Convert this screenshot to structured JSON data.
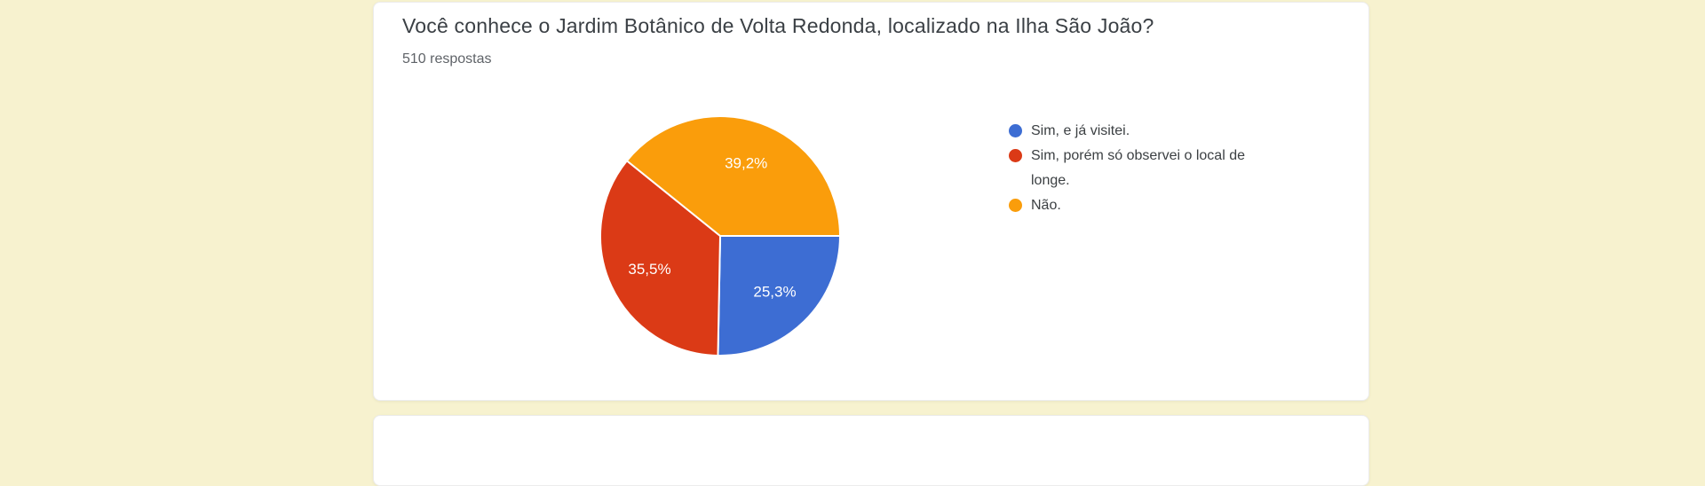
{
  "page": {
    "background_color": "#F7F2CF",
    "card_color": "#FFFFFF"
  },
  "card": {
    "question": "Você conhece o Jardim Botânico de Volta Redonda, localizado na Ilha São João?",
    "responses_label": "510 respostas"
  },
  "chart_data": {
    "type": "pie",
    "title": "Você conhece o Jardim Botânico de Volta Redonda, localizado na Ilha São João?",
    "subtitle": "510 respostas",
    "total_responses": 510,
    "start_angle_deg": 90,
    "direction": "clockwise",
    "legend_position": "right",
    "label_color": "#ffffff",
    "slices": [
      {
        "label": "Sim, e já visitei.",
        "value_pct": 25.3,
        "data_label": "25,3%",
        "color": "#3D6DD3"
      },
      {
        "label": "Sim, porém só observei o local de longe.",
        "value_pct": 35.5,
        "data_label": "35,5%",
        "color": "#DB3A16"
      },
      {
        "label": "Não.",
        "value_pct": 39.2,
        "data_label": "39,2%",
        "color": "#FA9D0B"
      }
    ]
  }
}
